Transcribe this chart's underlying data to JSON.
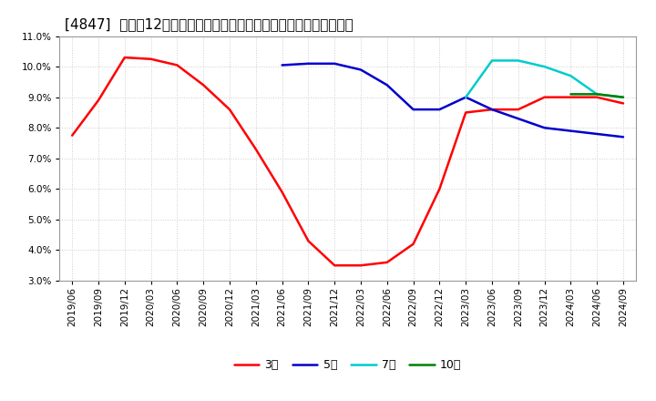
{
  "title": "[4847]  売上高12か月移動合計の対前年同期増減率の標準偏差の推移",
  "ylim": [
    0.03,
    0.11
  ],
  "yticks": [
    0.03,
    0.04,
    0.05,
    0.06,
    0.07,
    0.08,
    0.09,
    0.1,
    0.11
  ],
  "background_color": "#ffffff",
  "grid_color": "#cccccc",
  "series": [
    {
      "key": "3year",
      "color": "#ff0000",
      "label": "3年",
      "dates": [
        "2019/06",
        "2019/09",
        "2019/12",
        "2020/03",
        "2020/06",
        "2020/09",
        "2020/12",
        "2021/03",
        "2021/06",
        "2021/09",
        "2021/12",
        "2022/03",
        "2022/06",
        "2022/09",
        "2022/12",
        "2023/03",
        "2023/06",
        "2023/09",
        "2023/12",
        "2024/03",
        "2024/06",
        "2024/09"
      ],
      "values": [
        0.0775,
        0.089,
        0.103,
        0.1025,
        0.1005,
        0.094,
        0.086,
        0.073,
        0.059,
        0.043,
        0.035,
        0.035,
        0.036,
        0.042,
        0.06,
        0.085,
        0.086,
        0.086,
        0.09,
        0.09,
        0.09,
        0.088
      ]
    },
    {
      "key": "5year",
      "color": "#0000cd",
      "label": "5年",
      "dates": [
        "2021/06",
        "2021/09",
        "2021/12",
        "2022/03",
        "2022/06",
        "2022/09",
        "2022/12",
        "2023/03",
        "2023/06",
        "2023/09",
        "2023/12",
        "2024/03",
        "2024/06",
        "2024/09"
      ],
      "values": [
        0.1005,
        0.101,
        0.101,
        0.099,
        0.094,
        0.086,
        0.086,
        0.09,
        0.086,
        0.083,
        0.08,
        0.079,
        0.078,
        0.077
      ]
    },
    {
      "key": "7year",
      "color": "#00cccc",
      "label": "7年",
      "dates": [
        "2023/03",
        "2023/06",
        "2023/09",
        "2023/12",
        "2024/03",
        "2024/06",
        "2024/09"
      ],
      "values": [
        0.09,
        0.102,
        0.102,
        0.1,
        0.097,
        0.091,
        0.09
      ]
    },
    {
      "key": "10year",
      "color": "#008000",
      "label": "10年",
      "dates": [
        "2024/03",
        "2024/06",
        "2024/09"
      ],
      "values": [
        0.091,
        0.091,
        0.09
      ]
    }
  ],
  "x_ticks": [
    "2019/06",
    "2019/09",
    "2019/12",
    "2020/03",
    "2020/06",
    "2020/09",
    "2020/12",
    "2021/03",
    "2021/06",
    "2021/09",
    "2021/12",
    "2022/03",
    "2022/06",
    "2022/09",
    "2022/12",
    "2023/03",
    "2023/06",
    "2023/09",
    "2023/12",
    "2024/03",
    "2024/06",
    "2024/09"
  ],
  "linewidth": 1.8,
  "title_fontsize": 11,
  "tick_fontsize": 7.5,
  "legend_fontsize": 9
}
